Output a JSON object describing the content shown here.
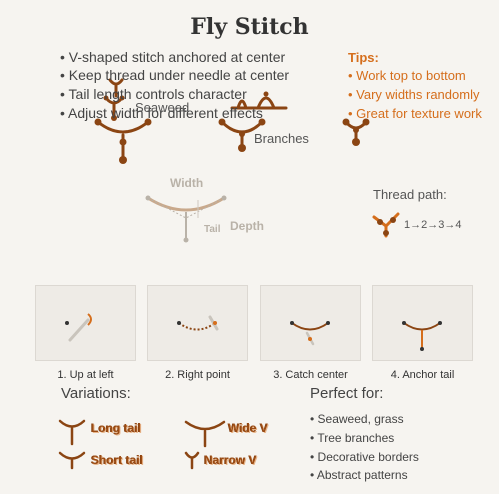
{
  "title": "Fly Stitch",
  "bullets": [
    "• V-shaped stitch anchored at center",
    "• Keep thread under needle at center",
    "• Tail length controls character",
    "• Adjust width for different effects"
  ],
  "tips": {
    "heading": "Tips:",
    "items": [
      "• Work top to bottom",
      "• Vary widths randomly",
      "• Great for texture work"
    ]
  },
  "illustration_labels": {
    "seaweed": "Seaweed",
    "branches": "Branches"
  },
  "diagram_labels": {
    "width": "Width",
    "tail": "Tail",
    "depth": "Depth"
  },
  "thread_path": {
    "label": "Thread path:",
    "sequence": "1→2→3→4"
  },
  "steps": [
    "1. Up at left",
    "2. Right point",
    "3. Catch center",
    "4. Anchor tail"
  ],
  "variations": {
    "heading": "Variations:",
    "items": [
      "Long tail",
      "Short tail",
      "Wide V",
      "Narrow V"
    ]
  },
  "perfect_for": {
    "heading": "Perfect for:",
    "items": [
      "• Seaweed, grass",
      "• Tree branches",
      "• Decorative borders",
      "• Abstract patterns"
    ]
  },
  "colors": {
    "stitch": "#8b4513",
    "accent": "#d56e1c",
    "muted": "#b9b2a8",
    "panel": "#eeebe6"
  }
}
